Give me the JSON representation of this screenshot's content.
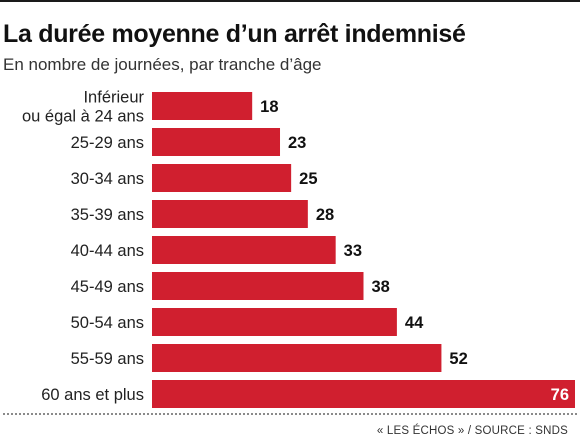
{
  "chart_data": {
    "type": "bar",
    "orientation": "horizontal",
    "title": "La durée moyenne d’un arrêt indemnisé",
    "subtitle": "En nombre de journées, par tranche d’âge",
    "categories": [
      [
        "Inférieur",
        "ou égal à 24 ans"
      ],
      [
        "25-29 ans"
      ],
      [
        "30-34 ans"
      ],
      [
        "35-39 ans"
      ],
      [
        "40-44 ans"
      ],
      [
        "45-49 ans"
      ],
      [
        "50-54 ans"
      ],
      [
        "55-59 ans"
      ],
      [
        "60 ans et plus"
      ]
    ],
    "values": [
      18,
      23,
      25,
      28,
      33,
      38,
      44,
      52,
      76
    ],
    "bar_color": "#d01f2f",
    "grid": false,
    "legend": "none"
  },
  "source": "« LES ÉCHOS » / SOURCE : SNDS"
}
